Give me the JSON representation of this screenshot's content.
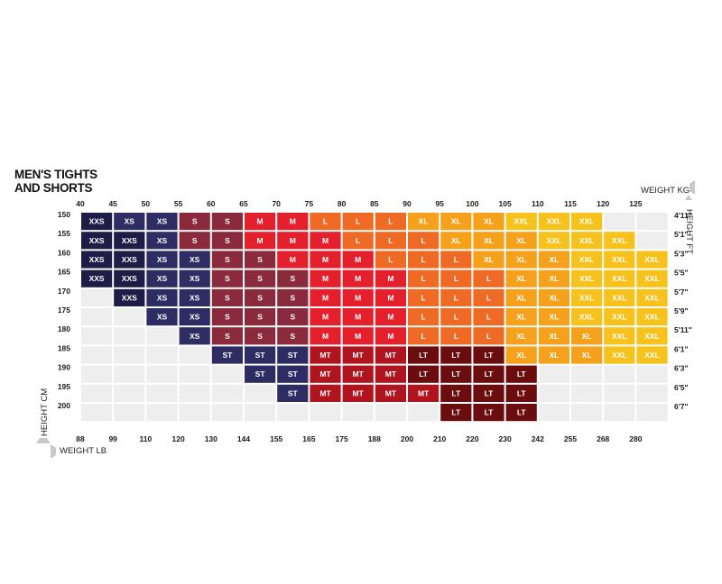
{
  "chart_data": {
    "type": "table",
    "title_lines": [
      "MEN'S TIGHTS",
      "AND SHORTS"
    ],
    "weight_kg_label": "WEIGHT KG",
    "weight_lb_label": "WEIGHT LB",
    "height_cm_label": "HEIGHT CM",
    "height_ft_label": "HEIGHT FT",
    "weight_kg": [
      "40",
      "45",
      "50",
      "55",
      "60",
      "65",
      "70",
      "75",
      "80",
      "85",
      "90",
      "95",
      "100",
      "105",
      "110",
      "115",
      "120",
      "125"
    ],
    "weight_lb": [
      "88",
      "99",
      "110",
      "120",
      "130",
      "144",
      "155",
      "165",
      "175",
      "188",
      "200",
      "210",
      "220",
      "230",
      "242",
      "255",
      "268",
      "280"
    ],
    "height_cm": [
      "150",
      "155",
      "160",
      "165",
      "170",
      "175",
      "180",
      "185",
      "190",
      "195",
      "200"
    ],
    "height_ft": [
      "4'11\"",
      "5'1\"",
      "5'3\"",
      "5'5\"",
      "5'7\"",
      "5'9\"",
      "5'11\"",
      "6'1\"",
      "6'3\"",
      "6'5\"",
      "6'7\""
    ],
    "size_colors": {
      "XXS": "#1f1c48",
      "XS": "#2e2d63",
      "S": "#8a2a3c",
      "M": "#e3202c",
      "L": "#ef6a24",
      "XL": "#f5a11c",
      "XXL": "#f6c21b",
      "ST": "#2e2d63",
      "MT": "#b0151f",
      "LT": "#6b0d0f",
      "empty": "#eeeeee"
    },
    "grid": [
      [
        "XXS",
        "XS",
        "XS",
        "S",
        "S",
        "M",
        "M",
        "L",
        "L",
        "L",
        "XL",
        "XL",
        "XL",
        "XXL",
        "XXL",
        "XXL",
        "",
        ""
      ],
      [
        "XXS",
        "XXS",
        "XS",
        "S",
        "S",
        "M",
        "M",
        "M",
        "L",
        "L",
        "L",
        "XL",
        "XL",
        "XL",
        "XXL",
        "XXL",
        "XXL",
        ""
      ],
      [
        "XXS",
        "XXS",
        "XS",
        "XS",
        "S",
        "S",
        "M",
        "M",
        "M",
        "L",
        "L",
        "L",
        "XL",
        "XL",
        "XL",
        "XXL",
        "XXL",
        "XXL"
      ],
      [
        "XXS",
        "XXS",
        "XS",
        "XS",
        "S",
        "S",
        "S",
        "M",
        "M",
        "M",
        "L",
        "L",
        "L",
        "XL",
        "XL",
        "XXL",
        "XXL",
        "XXL"
      ],
      [
        "",
        "XXS",
        "XS",
        "XS",
        "S",
        "S",
        "S",
        "M",
        "M",
        "M",
        "L",
        "L",
        "L",
        "XL",
        "XL",
        "XXL",
        "XXL",
        "XXL"
      ],
      [
        "",
        "",
        "XS",
        "XS",
        "S",
        "S",
        "S",
        "M",
        "M",
        "M",
        "L",
        "L",
        "L",
        "XL",
        "XL",
        "XXL",
        "XXL",
        "XXL"
      ],
      [
        "",
        "",
        "",
        "XS",
        "S",
        "S",
        "S",
        "M",
        "M",
        "M",
        "L",
        "L",
        "L",
        "XL",
        "XL",
        "XL",
        "XXL",
        "XXL"
      ],
      [
        "",
        "",
        "",
        "",
        "ST",
        "ST",
        "ST",
        "MT",
        "MT",
        "MT",
        "LT",
        "LT",
        "LT",
        "XL",
        "XL",
        "XL",
        "XXL",
        "XXL"
      ],
      [
        "",
        "",
        "",
        "",
        "",
        "ST",
        "ST",
        "MT",
        "MT",
        "MT",
        "LT",
        "LT",
        "LT",
        "LT",
        "",
        "",
        "",
        ""
      ],
      [
        "",
        "",
        "",
        "",
        "",
        "",
        "ST",
        "MT",
        "MT",
        "MT",
        "MT",
        "LT",
        "LT",
        "LT",
        "",
        "",
        "",
        ""
      ],
      [
        "",
        "",
        "",
        "",
        "",
        "",
        "",
        "",
        "",
        "",
        "",
        "LT",
        "LT",
        "LT",
        "",
        "",
        "",
        ""
      ]
    ]
  }
}
